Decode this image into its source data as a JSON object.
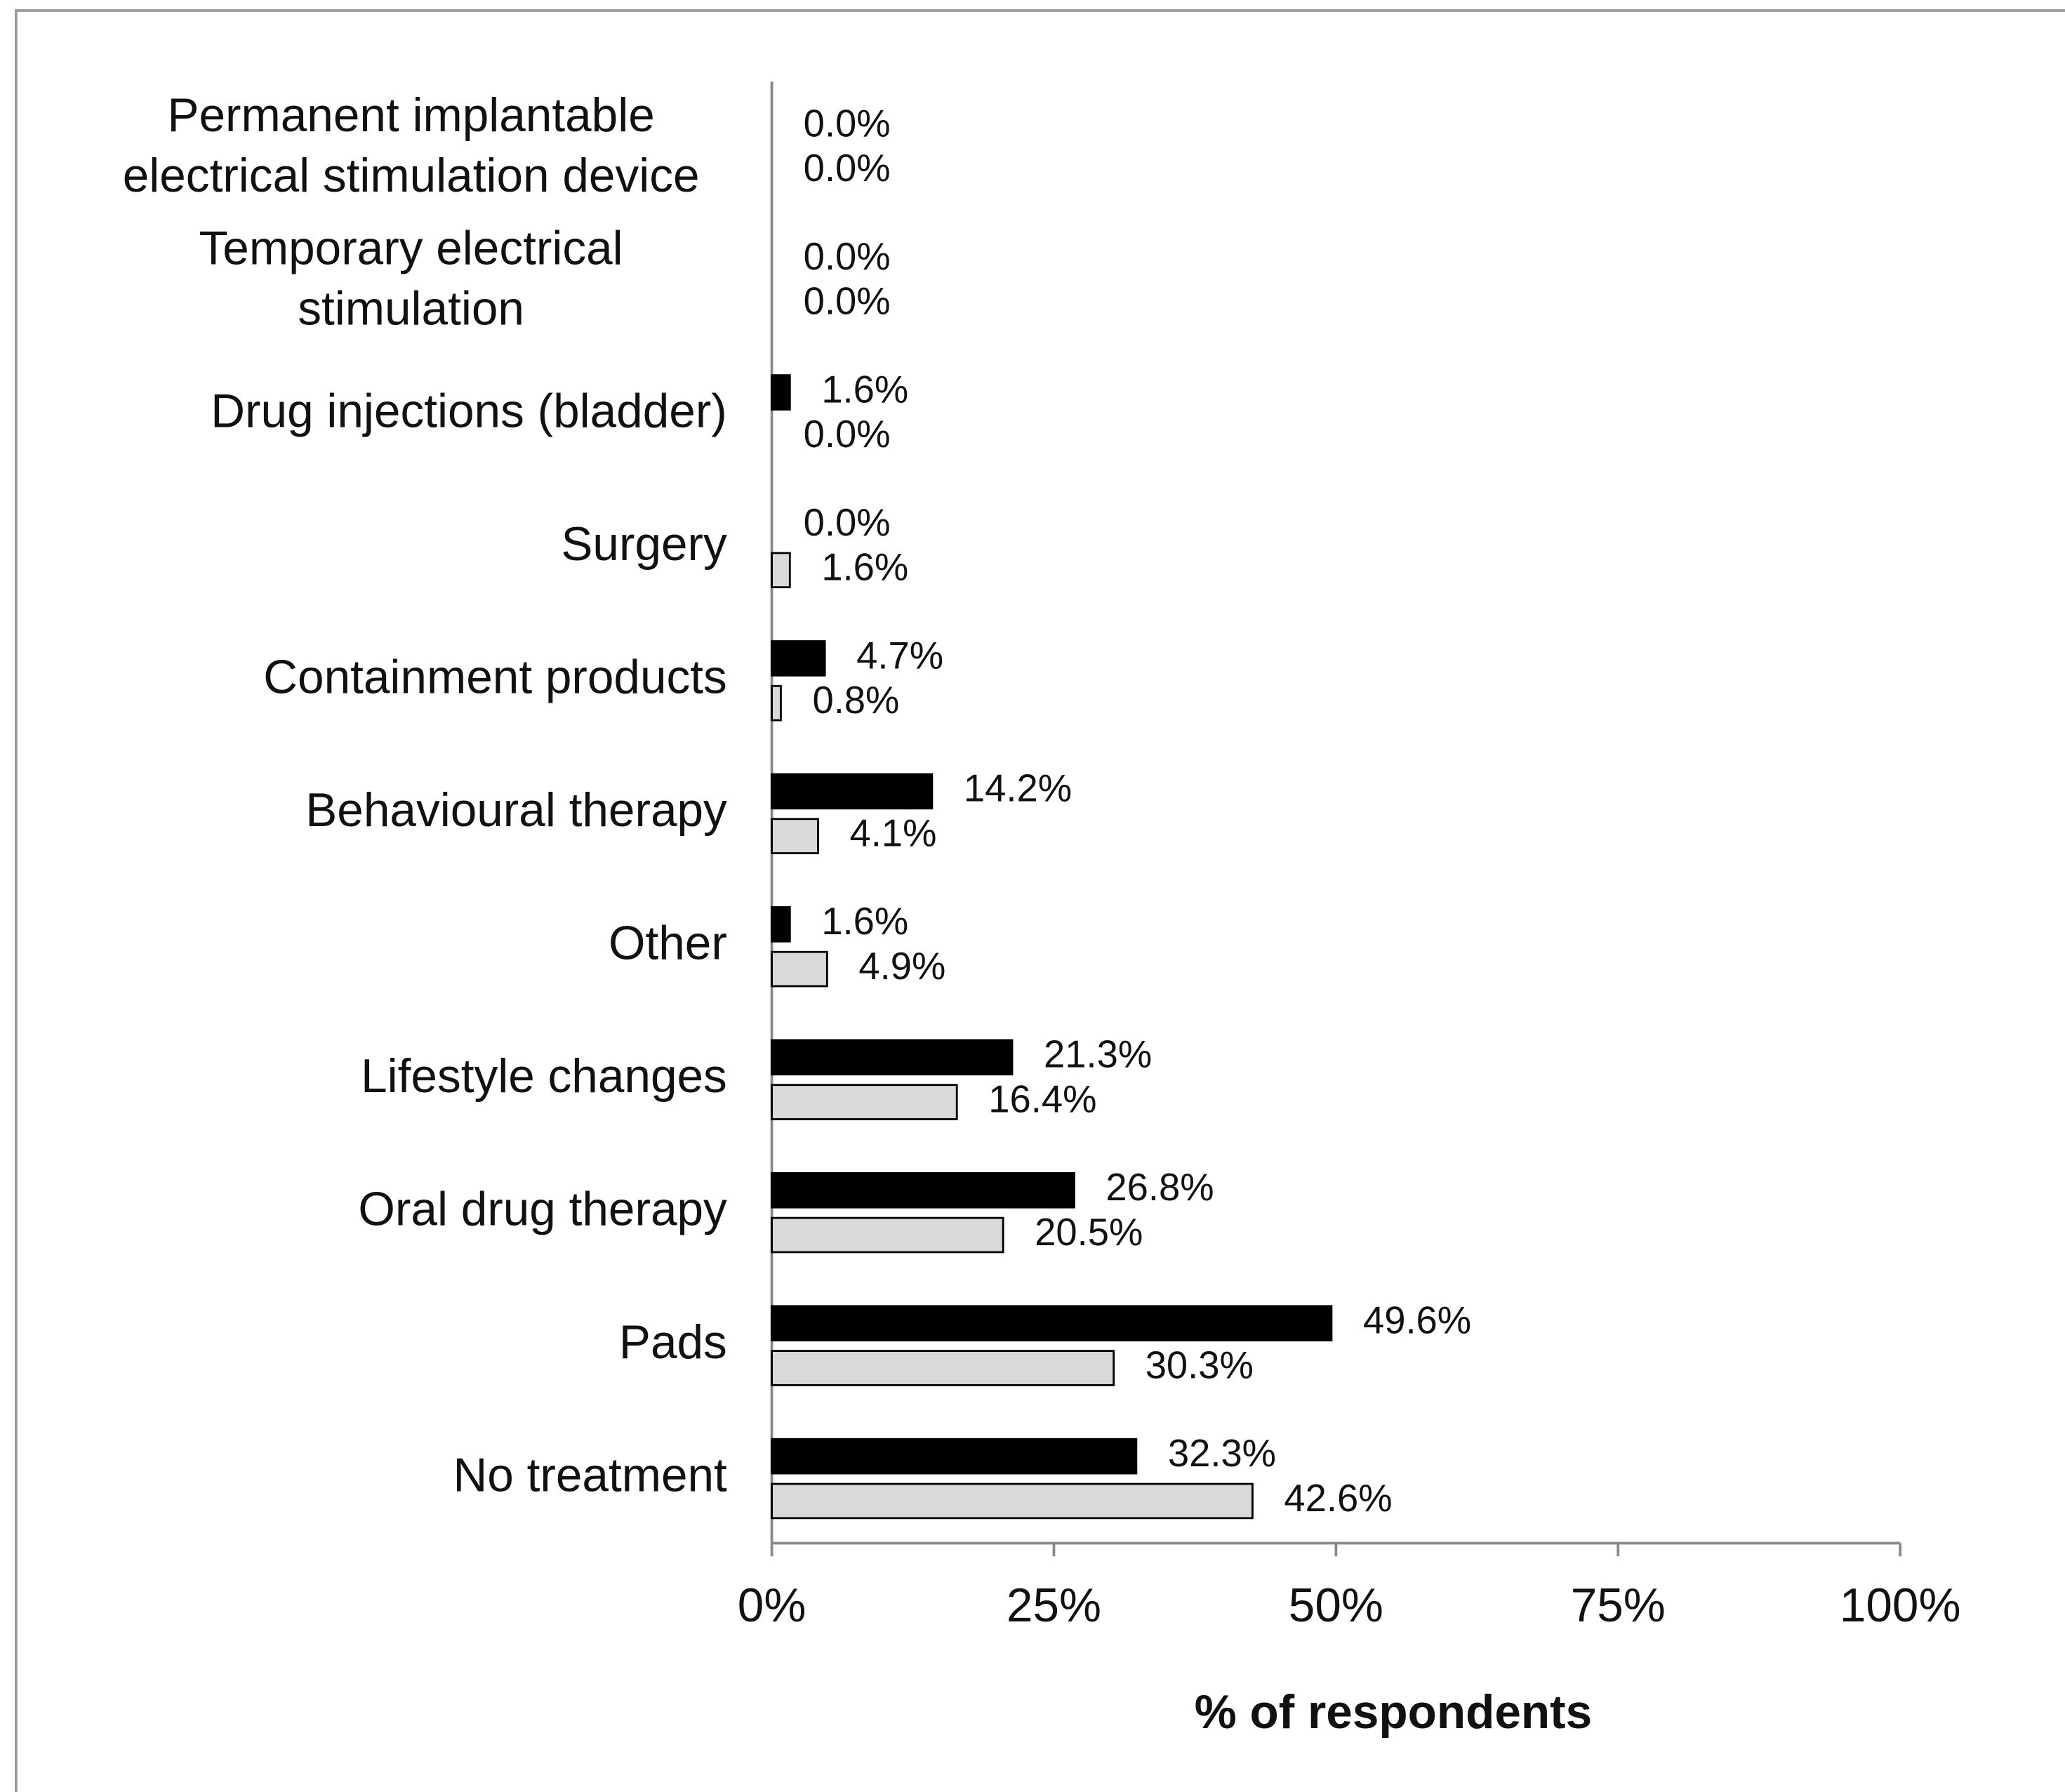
{
  "chart_data": {
    "type": "hbar",
    "x_label": "% of respondents",
    "categories": [
      "Permanent implantable electrical stimulation device",
      "Temporary electrical stimulation",
      "Drug injections (bladder)",
      "Surgery",
      "Containment products",
      "Behavioural therapy",
      "Other",
      "Lifestyle changes",
      "Oral drug therapy",
      "Pads",
      "No treatment"
    ],
    "series": [
      {
        "color": "#000000",
        "values": [
          0,
          0,
          1.6,
          0,
          4.7,
          14.2,
          1.6,
          21.3,
          26.8,
          49.6,
          32.3
        ],
        "value_labels": [
          "0.0%",
          "0.0%",
          "1.6%",
          "0.0%",
          "4.7%",
          "14.2%",
          "1.6%",
          "21.3%",
          "26.8%",
          "49.6%",
          "32.3%"
        ]
      },
      {
        "color": "#d9d9d9",
        "values": [
          0,
          0,
          0,
          1.6,
          0.8,
          4.1,
          4.9,
          16.4,
          20.5,
          30.3,
          42.6
        ],
        "value_labels": [
          "0.0%",
          "0.0%",
          "0.0%",
          "1.6%",
          "0.8%",
          "4.1%",
          "4.9%",
          "16.4%",
          "20.5%",
          "30.3%",
          "42.6%"
        ]
      }
    ],
    "xlim": [
      0,
      100
    ],
    "xticks": [
      {
        "value": 0,
        "label": "0%"
      },
      {
        "value": 25,
        "label": "25%"
      },
      {
        "value": 50,
        "label": "50%"
      },
      {
        "value": 75,
        "label": "75%"
      },
      {
        "value": 100,
        "label": "100%"
      }
    ]
  }
}
